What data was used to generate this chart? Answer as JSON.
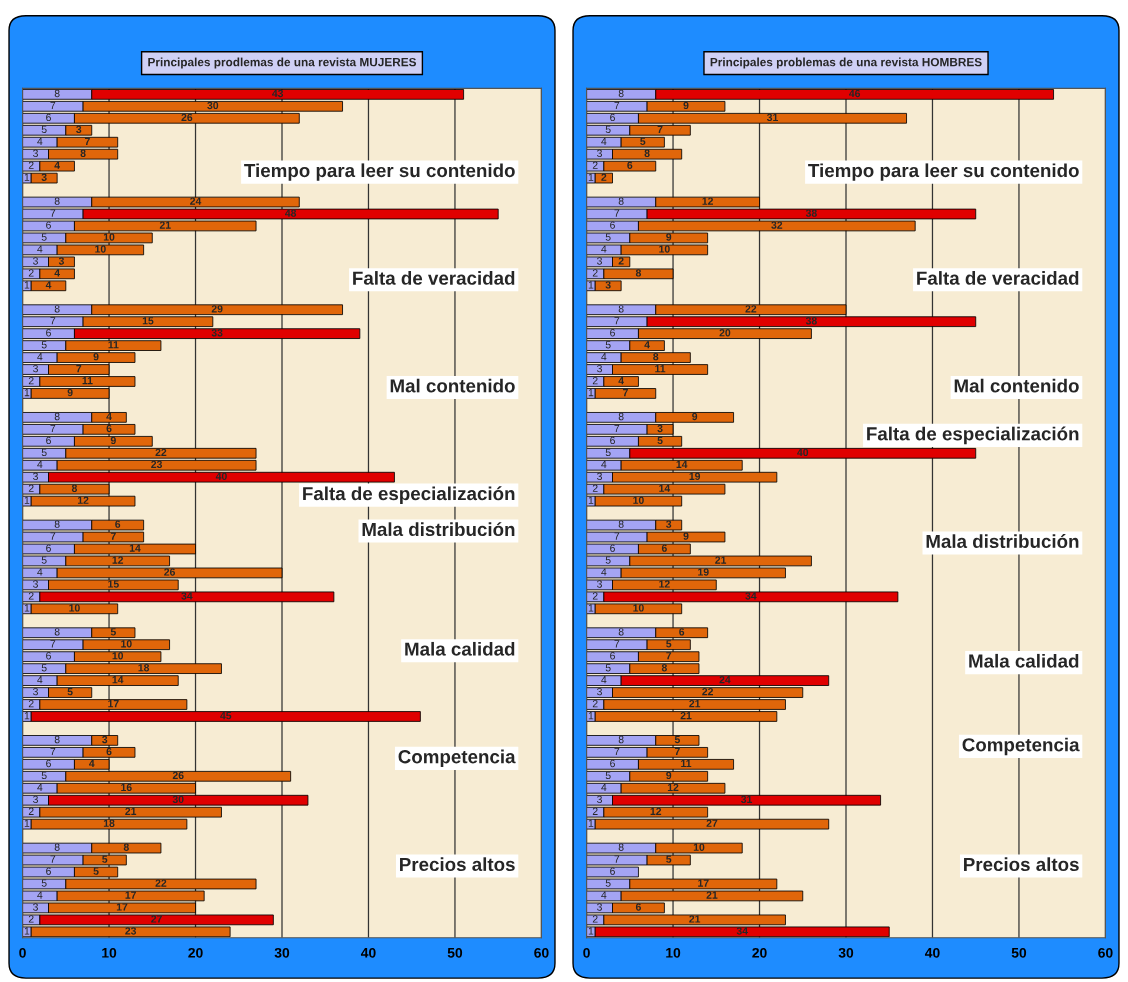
{
  "chart_data": [
    {
      "type": "bar",
      "orientation": "horizontal",
      "stacked": true,
      "title": "Principales prodlemas de una revista MUJERES",
      "categories": [
        null,
        null,
        null,
        null,
        null,
        null,
        null,
        null,
        null,
        null,
        null,
        null,
        null,
        null,
        null,
        null,
        null,
        null,
        null,
        null,
        null,
        null,
        null,
        null,
        null,
        null,
        null,
        null,
        null,
        null,
        null,
        null,
        null,
        null,
        null,
        null,
        null,
        null,
        null,
        null,
        null,
        null,
        null,
        null,
        null,
        null,
        null,
        null,
        null,
        null,
        null,
        null,
        null,
        null,
        null,
        null,
        null,
        null,
        null,
        null,
        null,
        null,
        null,
        null,
        null,
        null,
        null,
        null,
        null,
        null,
        null
      ],
      "series": [
        {
          "color": "#a4a4f4",
          "values": [
            8,
            7,
            6,
            5,
            4,
            3,
            2,
            1,
            null,
            8,
            7,
            6,
            5,
            4,
            3,
            2,
            1,
            null,
            8,
            7,
            6,
            5,
            4,
            3,
            2,
            1,
            null,
            8,
            7,
            6,
            5,
            4,
            3,
            2,
            1,
            null,
            8,
            7,
            6,
            5,
            4,
            3,
            2,
            1,
            null,
            8,
            7,
            6,
            5,
            4,
            3,
            2,
            1,
            null,
            8,
            7,
            6,
            5,
            4,
            3,
            2,
            1,
            null,
            8,
            7,
            6,
            5,
            4,
            3,
            2,
            1
          ]
        },
        {
          "values": [
            43,
            30,
            26,
            3,
            7,
            8,
            4,
            3,
            null,
            24,
            48,
            21,
            10,
            10,
            3,
            4,
            4,
            null,
            29,
            15,
            33,
            11,
            9,
            7,
            11,
            9,
            null,
            4,
            6,
            9,
            22,
            23,
            40,
            8,
            12,
            null,
            6,
            7,
            14,
            12,
            26,
            15,
            34,
            10,
            null,
            5,
            10,
            10,
            18,
            14,
            5,
            17,
            45,
            null,
            3,
            6,
            4,
            26,
            16,
            30,
            21,
            18,
            null,
            8,
            5,
            5,
            22,
            17,
            17,
            27,
            23
          ],
          "colors": [
            "#e00000",
            "#e0660a",
            "#e0660a",
            "#e0660a",
            "#e0660a",
            "#e0660a",
            "#e0660a",
            "#e0660a",
            null,
            "#e0660a",
            "#e00000",
            "#e0660a",
            "#e0660a",
            "#e0660a",
            "#e0660a",
            "#e0660a",
            "#e0660a",
            null,
            "#e0660a",
            "#e0660a",
            "#e00000",
            "#e0660a",
            "#e0660a",
            "#e0660a",
            "#e0660a",
            "#e0660a",
            null,
            "#e0660a",
            "#e0660a",
            "#e0660a",
            "#e0660a",
            "#e0660a",
            "#e00000",
            "#e0660a",
            "#e0660a",
            null,
            "#e0660a",
            "#e0660a",
            "#e0660a",
            "#e0660a",
            "#e0660a",
            "#e0660a",
            "#e00000",
            "#e0660a",
            null,
            "#e0660a",
            "#e0660a",
            "#e0660a",
            "#e0660a",
            "#e0660a",
            "#e0660a",
            "#e0660a",
            "#e00000",
            null,
            "#e0660a",
            "#e0660a",
            "#e0660a",
            "#e0660a",
            "#e0660a",
            "#e00000",
            "#e0660a",
            "#e0660a",
            null,
            "#e0660a",
            "#e0660a",
            "#e0660a",
            "#e0660a",
            "#e0660a",
            "#e0660a",
            "#e00000",
            "#e0660a"
          ]
        }
      ],
      "xlim": [
        0,
        60
      ],
      "xticks": [
        0,
        10,
        20,
        30,
        40,
        50,
        60
      ],
      "grid": "x",
      "tick_labels": "x",
      "data_labels": true,
      "annotations": [
        "Tiempo para leer su contenido",
        "Falta de veracidad",
        "Mal contenido",
        "Falta de especialización",
        "Mala distribución",
        "Mala calidad",
        "Competencia",
        "Precios altos"
      ]
    },
    {
      "type": "bar",
      "orientation": "horizontal",
      "stacked": true,
      "title": "Principales problemas de una revista HOMBRES",
      "categories": [
        null,
        null,
        null,
        null,
        null,
        null,
        null,
        null,
        null,
        null,
        null,
        null,
        null,
        null,
        null,
        null,
        null,
        null,
        null,
        null,
        null,
        null,
        null,
        null,
        null,
        null,
        null,
        null,
        null,
        null,
        null,
        null,
        null,
        null,
        null,
        null,
        null,
        null,
        null,
        null,
        null,
        null,
        null,
        null,
        null,
        null,
        null,
        null,
        null,
        null,
        null,
        null,
        null,
        null,
        null,
        null,
        null,
        null,
        null,
        null,
        null,
        null,
        null,
        null,
        null,
        null,
        null,
        null,
        null,
        null,
        null
      ],
      "series": [
        {
          "color": "#a4a4f4",
          "values": [
            8,
            7,
            6,
            5,
            4,
            3,
            2,
            1,
            null,
            8,
            7,
            6,
            5,
            4,
            3,
            2,
            1,
            null,
            8,
            7,
            6,
            5,
            4,
            3,
            2,
            1,
            null,
            8,
            7,
            6,
            5,
            4,
            3,
            2,
            1,
            null,
            8,
            7,
            6,
            5,
            4,
            3,
            2,
            1,
            null,
            8,
            7,
            6,
            5,
            4,
            3,
            2,
            1,
            null,
            8,
            7,
            6,
            5,
            4,
            3,
            2,
            1,
            null,
            8,
            7,
            6,
            5,
            4,
            3,
            2,
            1
          ]
        },
        {
          "values": [
            46,
            9,
            31,
            7,
            5,
            8,
            6,
            2,
            null,
            12,
            38,
            32,
            9,
            10,
            2,
            8,
            3,
            null,
            22,
            38,
            20,
            4,
            8,
            11,
            4,
            7,
            null,
            9,
            3,
            5,
            40,
            14,
            19,
            14,
            10,
            null,
            3,
            9,
            6,
            21,
            19,
            12,
            34,
            10,
            null,
            6,
            5,
            7,
            8,
            24,
            22,
            21,
            21,
            null,
            5,
            7,
            11,
            9,
            12,
            31,
            12,
            27,
            null,
            10,
            5,
            null,
            17,
            21,
            6,
            21,
            34
          ],
          "colors": [
            "#e00000",
            "#e0660a",
            "#e0660a",
            "#e0660a",
            "#e0660a",
            "#e0660a",
            "#e0660a",
            "#e0660a",
            null,
            "#e0660a",
            "#e00000",
            "#e0660a",
            "#e0660a",
            "#e0660a",
            "#e0660a",
            "#e0660a",
            "#e0660a",
            null,
            "#e0660a",
            "#e00000",
            "#e0660a",
            "#e0660a",
            "#e0660a",
            "#e0660a",
            "#e0660a",
            "#e0660a",
            null,
            "#e0660a",
            "#e0660a",
            "#e0660a",
            "#e00000",
            "#e0660a",
            "#e0660a",
            "#e0660a",
            "#e0660a",
            null,
            "#e0660a",
            "#e0660a",
            "#e0660a",
            "#e0660a",
            "#e0660a",
            "#e0660a",
            "#e00000",
            "#e0660a",
            null,
            "#e0660a",
            "#e0660a",
            "#e0660a",
            "#e0660a",
            "#e00000",
            "#e0660a",
            "#e0660a",
            "#e0660a",
            null,
            "#e0660a",
            "#e0660a",
            "#e0660a",
            "#e0660a",
            "#e0660a",
            "#e00000",
            "#e0660a",
            "#e0660a",
            null,
            "#e0660a",
            "#e0660a",
            null,
            "#e0660a",
            "#e0660a",
            "#e0660a",
            "#e0660a",
            "#e00000"
          ]
        }
      ],
      "xlim": [
        0,
        60
      ],
      "xticks": [
        0,
        10,
        20,
        30,
        40,
        50,
        60
      ],
      "grid": "x",
      "tick_labels": "x",
      "data_labels": true,
      "annotations": [
        "Tiempo para leer su contenido",
        "Falta de veracidad",
        "Mal contenido",
        "Falta de especialización",
        "Mala distribución",
        "Mala calidad",
        "Competencia",
        "Precios altos"
      ]
    }
  ]
}
